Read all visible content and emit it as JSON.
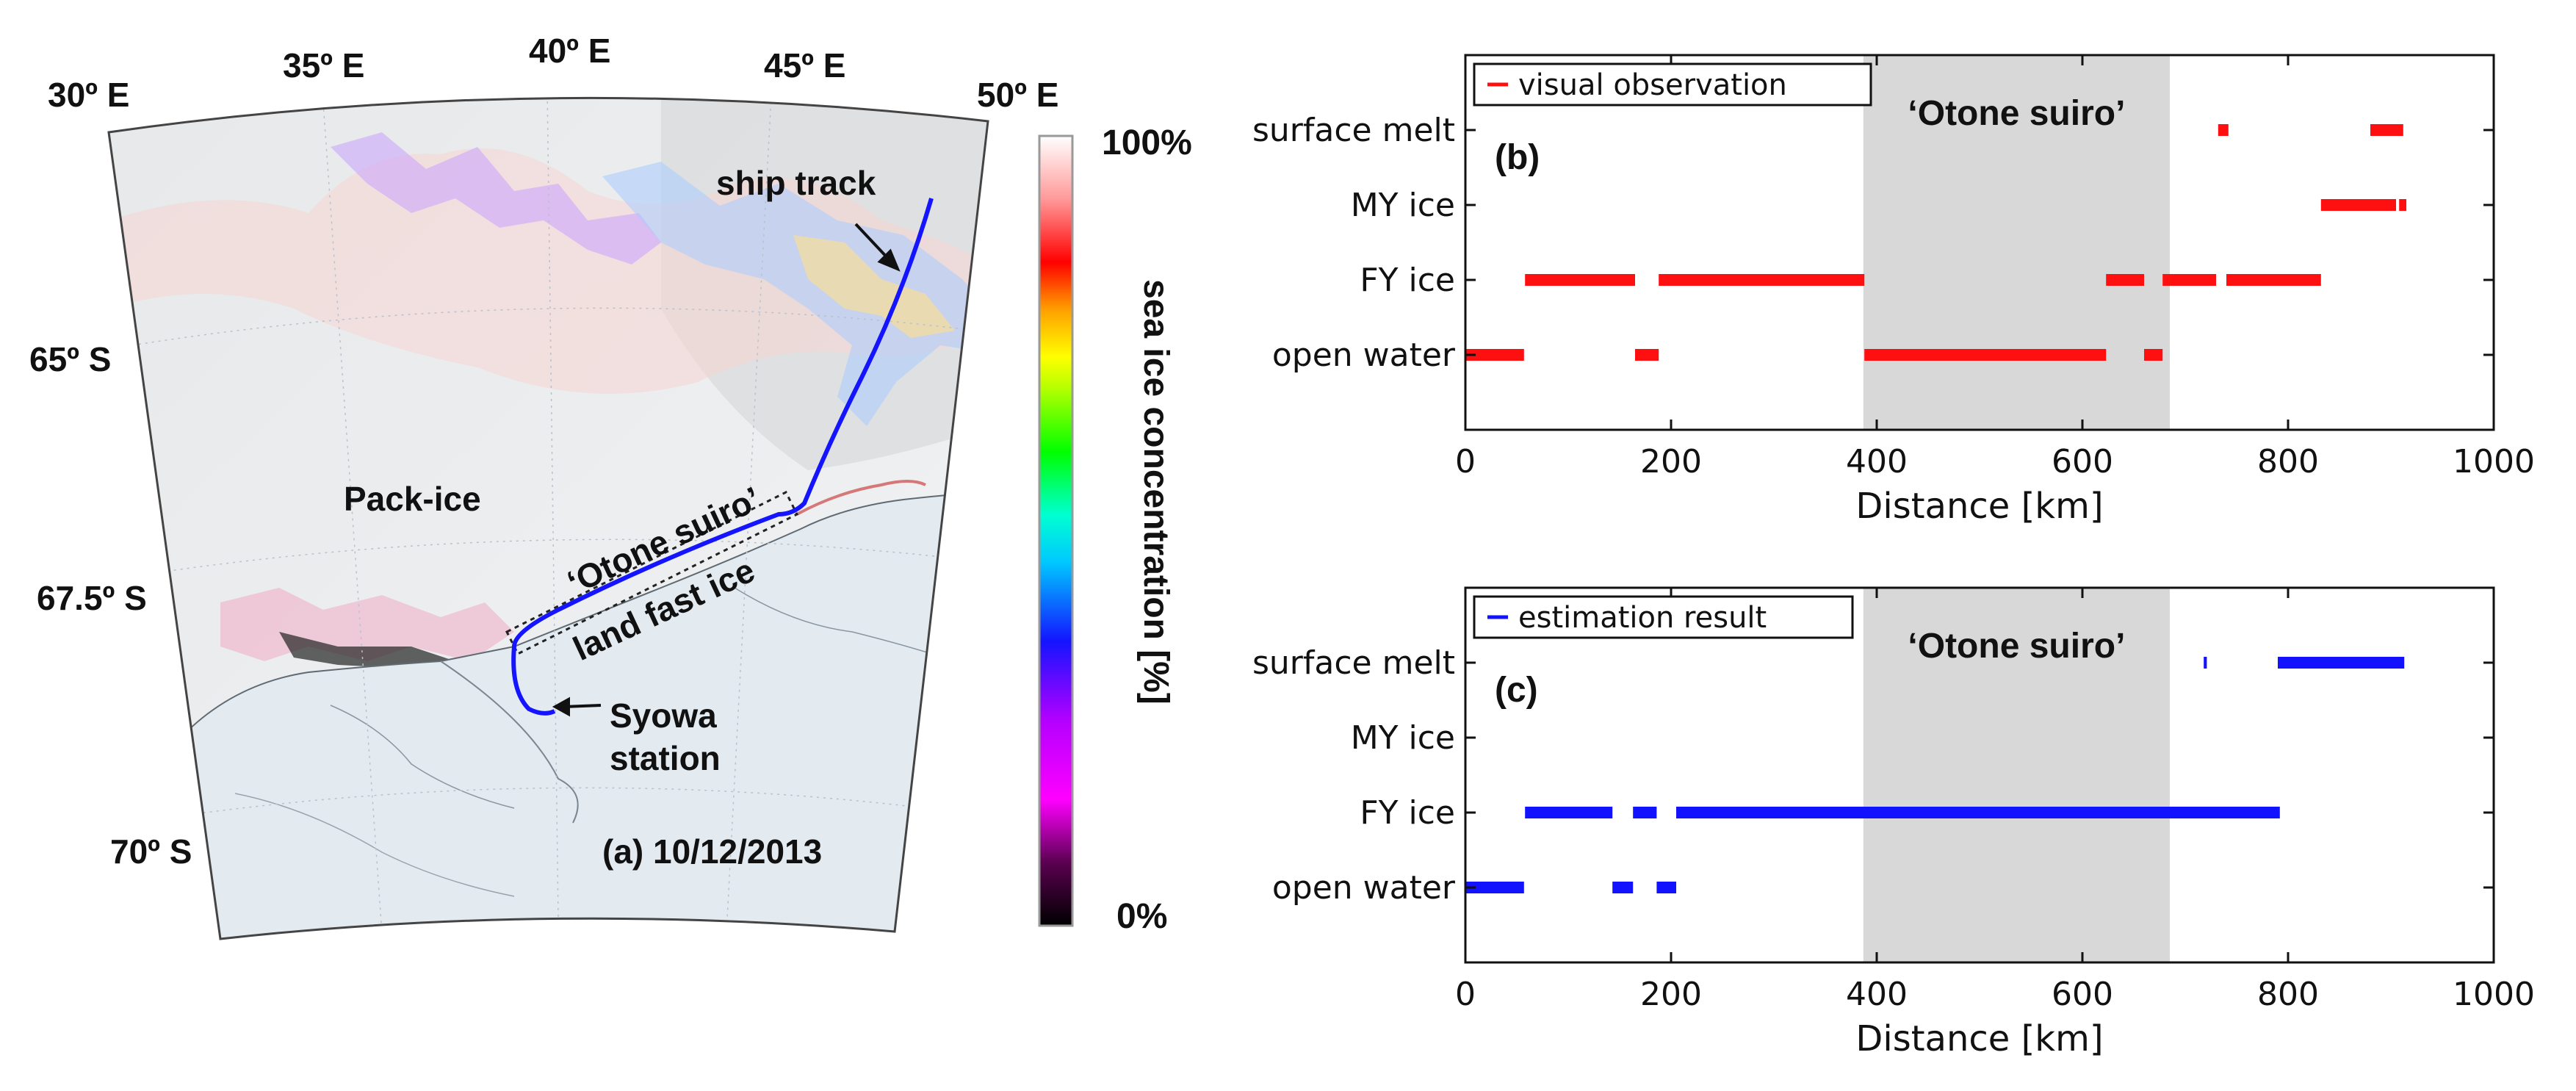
{
  "map": {
    "lon_labels": [
      "30º E",
      "35º E",
      "40º E",
      "45º E",
      "50º E"
    ],
    "lat_labels": [
      "65º S",
      "67.5º S",
      "70º S"
    ],
    "annotations": {
      "ship_track": "ship track",
      "pack_ice": "Pack-ice",
      "otone_suiro": "‘Otone suiro’",
      "land_fast_ice": "land fast ice",
      "syowa_line1": "Syowa",
      "syowa_line2": "station",
      "panel_label": "(a) 10/12/2013"
    },
    "colorbar": {
      "max_label": "100%",
      "min_label": "0%",
      "title": "sea ice concentration [%]"
    },
    "colors": {
      "track": "#1414ff",
      "land": "#dfe8ef",
      "ice": "#eef0f2"
    }
  },
  "chart_data": [
    {
      "type": "timeline",
      "panel_label": "(b)",
      "legend": "visual observation",
      "shaded_label": "‘Otone suiro’",
      "shaded_range": [
        387,
        685
      ],
      "xlabel": "Distance [km]",
      "xlim": [
        0,
        1000
      ],
      "xticks": [
        "0",
        "200",
        "400",
        "600",
        "800",
        "1000"
      ],
      "xtick_values": [
        0,
        200,
        400,
        600,
        800,
        1000
      ],
      "categories": [
        "surface melt",
        "MY ice",
        "FY ice",
        "open water"
      ],
      "color": "#ff1010",
      "segments": [
        {
          "category": "surface melt",
          "start": 732,
          "end": 742
        },
        {
          "category": "surface melt",
          "start": 880,
          "end": 912
        },
        {
          "category": "MY ice",
          "start": 832,
          "end": 905
        },
        {
          "category": "MY ice",
          "start": 908,
          "end": 915
        },
        {
          "category": "FY ice",
          "start": 58,
          "end": 165
        },
        {
          "category": "FY ice",
          "start": 188,
          "end": 388
        },
        {
          "category": "FY ice",
          "start": 623,
          "end": 660
        },
        {
          "category": "FY ice",
          "start": 678,
          "end": 730
        },
        {
          "category": "FY ice",
          "start": 740,
          "end": 832
        },
        {
          "category": "open water",
          "start": 0,
          "end": 57
        },
        {
          "category": "open water",
          "start": 165,
          "end": 188
        },
        {
          "category": "open water",
          "start": 388,
          "end": 623
        },
        {
          "category": "open water",
          "start": 660,
          "end": 678
        }
      ]
    },
    {
      "type": "timeline",
      "panel_label": "(c)",
      "legend": "estimation result",
      "shaded_label": "‘Otone suiro’",
      "shaded_range": [
        387,
        685
      ],
      "xlabel": "Distance [km]",
      "xlim": [
        0,
        1000
      ],
      "xticks": [
        "0",
        "200",
        "400",
        "600",
        "800",
        "1000"
      ],
      "xtick_values": [
        0,
        200,
        400,
        600,
        800,
        1000
      ],
      "categories": [
        "surface melt",
        "MY ice",
        "FY ice",
        "open water"
      ],
      "color": "#1212ff",
      "segments": [
        {
          "category": "surface melt",
          "start": 718,
          "end": 721
        },
        {
          "category": "surface melt",
          "start": 790,
          "end": 913
        },
        {
          "category": "FY ice",
          "start": 58,
          "end": 143
        },
        {
          "category": "FY ice",
          "start": 163,
          "end": 186
        },
        {
          "category": "FY ice",
          "start": 205,
          "end": 792
        },
        {
          "category": "open water",
          "start": 0,
          "end": 57
        },
        {
          "category": "open water",
          "start": 143,
          "end": 163
        },
        {
          "category": "open water",
          "start": 186,
          "end": 205
        }
      ]
    }
  ]
}
